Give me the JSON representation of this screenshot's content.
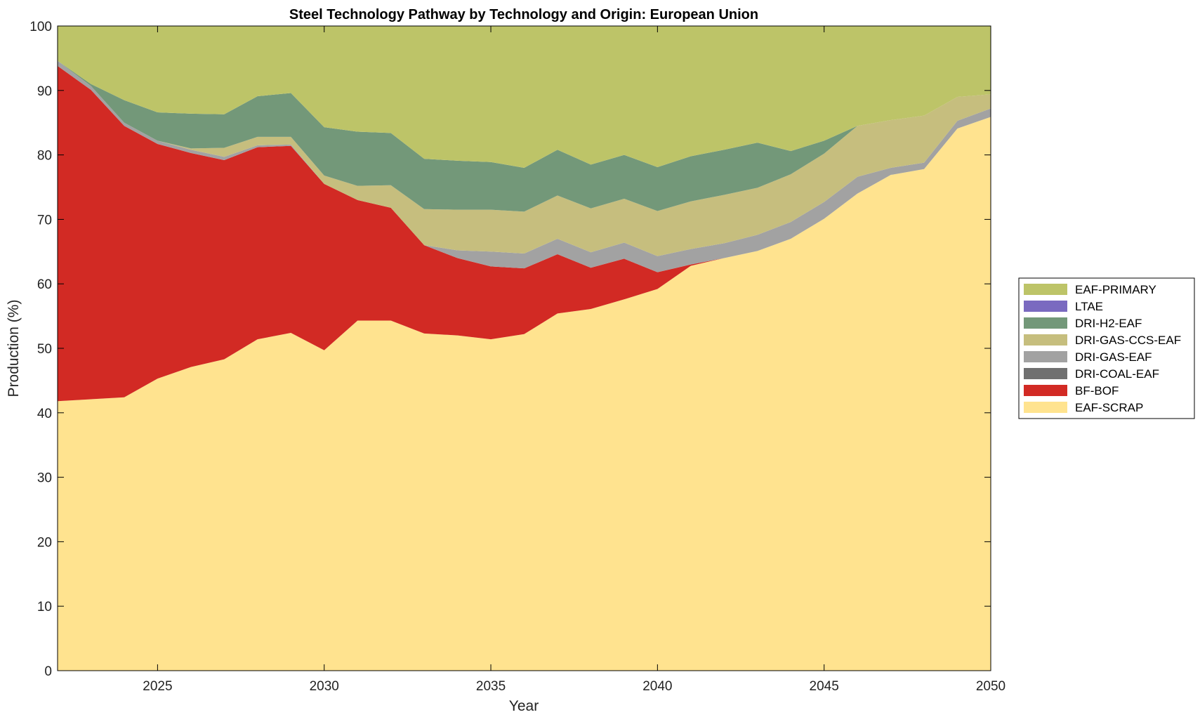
{
  "chart_data": {
    "type": "area",
    "title": "Steel Technology Pathway by Technology and Origin: European Union",
    "xlabel": "Year",
    "ylabel": "Production (%)",
    "xlim": [
      2022,
      2050
    ],
    "ylim": [
      0,
      100
    ],
    "xticks": [
      2025,
      2030,
      2035,
      2040,
      2045,
      2050
    ],
    "yticks": [
      0,
      10,
      20,
      30,
      40,
      50,
      60,
      70,
      80,
      90,
      100
    ],
    "grid": false,
    "legend_position": "right",
    "x": [
      2022,
      2023,
      2024,
      2025,
      2026,
      2027,
      2028,
      2029,
      2030,
      2031,
      2032,
      2033,
      2034,
      2035,
      2036,
      2037,
      2038,
      2039,
      2040,
      2041,
      2042,
      2043,
      2044,
      2045,
      2046,
      2047,
      2048,
      2049,
      2050
    ],
    "stack_order_bottom_to_top": [
      "EAF-SCRAP",
      "BF-BOF",
      "DRI-COAL-EAF",
      "DRI-GAS-EAF",
      "DRI-GAS-CCS-EAF",
      "DRI-H2-EAF",
      "LTAE",
      "EAF-PRIMARY"
    ],
    "series": [
      {
        "name": "EAF-SCRAP",
        "color": "#FFE38F",
        "values": [
          41.8,
          42.1,
          42.4,
          45.3,
          47.1,
          48.3,
          51.4,
          52.4,
          49.7,
          54.3,
          54.3,
          52.3,
          52.0,
          51.4,
          52.2,
          55.4,
          56.1,
          57.6,
          59.2,
          62.8,
          64.0,
          65.1,
          67.0,
          70.1,
          74.0,
          76.9,
          77.8,
          84.1,
          85.9
        ]
      },
      {
        "name": "BF-BOF",
        "color": "#D22A24",
        "values": [
          52.0,
          48.0,
          42.1,
          36.4,
          33.2,
          30.9,
          29.8,
          29.0,
          25.8,
          18.7,
          17.5,
          13.7,
          12.0,
          11.3,
          10.2,
          9.2,
          6.4,
          6.3,
          2.6,
          0.2,
          0,
          0,
          0,
          0,
          0,
          0,
          0,
          0,
          0
        ]
      },
      {
        "name": "DRI-COAL-EAF",
        "color": "#707070",
        "values": [
          0,
          0,
          0,
          0,
          0,
          0,
          0,
          0,
          0,
          0,
          0,
          0,
          0,
          0,
          0,
          0,
          0,
          0,
          0,
          0,
          0,
          0,
          0,
          0,
          0,
          0,
          0,
          0,
          0
        ]
      },
      {
        "name": "DRI-GAS-EAF",
        "color": "#A2A2A2",
        "values": [
          0.8,
          0.6,
          0.5,
          0.5,
          0.5,
          0.5,
          0.3,
          0.2,
          0,
          0,
          0,
          0,
          1.2,
          2.3,
          2.3,
          2.4,
          2.4,
          2.5,
          2.5,
          2.4,
          2.3,
          2.5,
          2.6,
          2.6,
          2.6,
          1.1,
          1.0,
          1.2,
          1.3
        ]
      },
      {
        "name": "DRI-GAS-CCS-EAF",
        "color": "#C6BE7E",
        "values": [
          0,
          0,
          0,
          0,
          0.2,
          1.4,
          1.3,
          1.2,
          1.3,
          2.2,
          3.5,
          5.6,
          6.3,
          6.5,
          6.5,
          6.7,
          6.8,
          6.8,
          7.0,
          7.4,
          7.5,
          7.3,
          7.4,
          7.5,
          7.9,
          7.4,
          7.3,
          3.7,
          2.2
        ]
      },
      {
        "name": "DRI-H2-EAF",
        "color": "#739879",
        "values": [
          0,
          0.3,
          3.5,
          4.4,
          5.4,
          5.2,
          6.3,
          6.8,
          7.5,
          8.4,
          8.1,
          7.8,
          7.6,
          7.4,
          6.8,
          7.1,
          6.8,
          6.8,
          6.8,
          7.0,
          7.0,
          7.0,
          3.6,
          2.0,
          0,
          0,
          0,
          0,
          0
        ]
      },
      {
        "name": "LTAE",
        "color": "#7A6AC0",
        "values": [
          0,
          0,
          0,
          0,
          0,
          0,
          0,
          0,
          0,
          0,
          0,
          0,
          0,
          0,
          0,
          0,
          0,
          0,
          0,
          0,
          0,
          0,
          0,
          0,
          0,
          0,
          0,
          0,
          0
        ]
      },
      {
        "name": "EAF-PRIMARY",
        "color": "#BDC468",
        "values": [
          5.4,
          9.0,
          11.5,
          13.4,
          13.6,
          13.7,
          10.9,
          10.4,
          15.7,
          16.4,
          16.6,
          20.6,
          20.9,
          21.1,
          22.0,
          19.2,
          21.5,
          20.0,
          21.9,
          20.2,
          19.2,
          18.1,
          19.4,
          17.8,
          15.5,
          14.6,
          13.9,
          11.0,
          10.6
        ]
      }
    ],
    "legend_order": [
      "EAF-PRIMARY",
      "LTAE",
      "DRI-H2-EAF",
      "DRI-GAS-CCS-EAF",
      "DRI-GAS-EAF",
      "DRI-COAL-EAF",
      "BF-BOF",
      "EAF-SCRAP"
    ]
  }
}
